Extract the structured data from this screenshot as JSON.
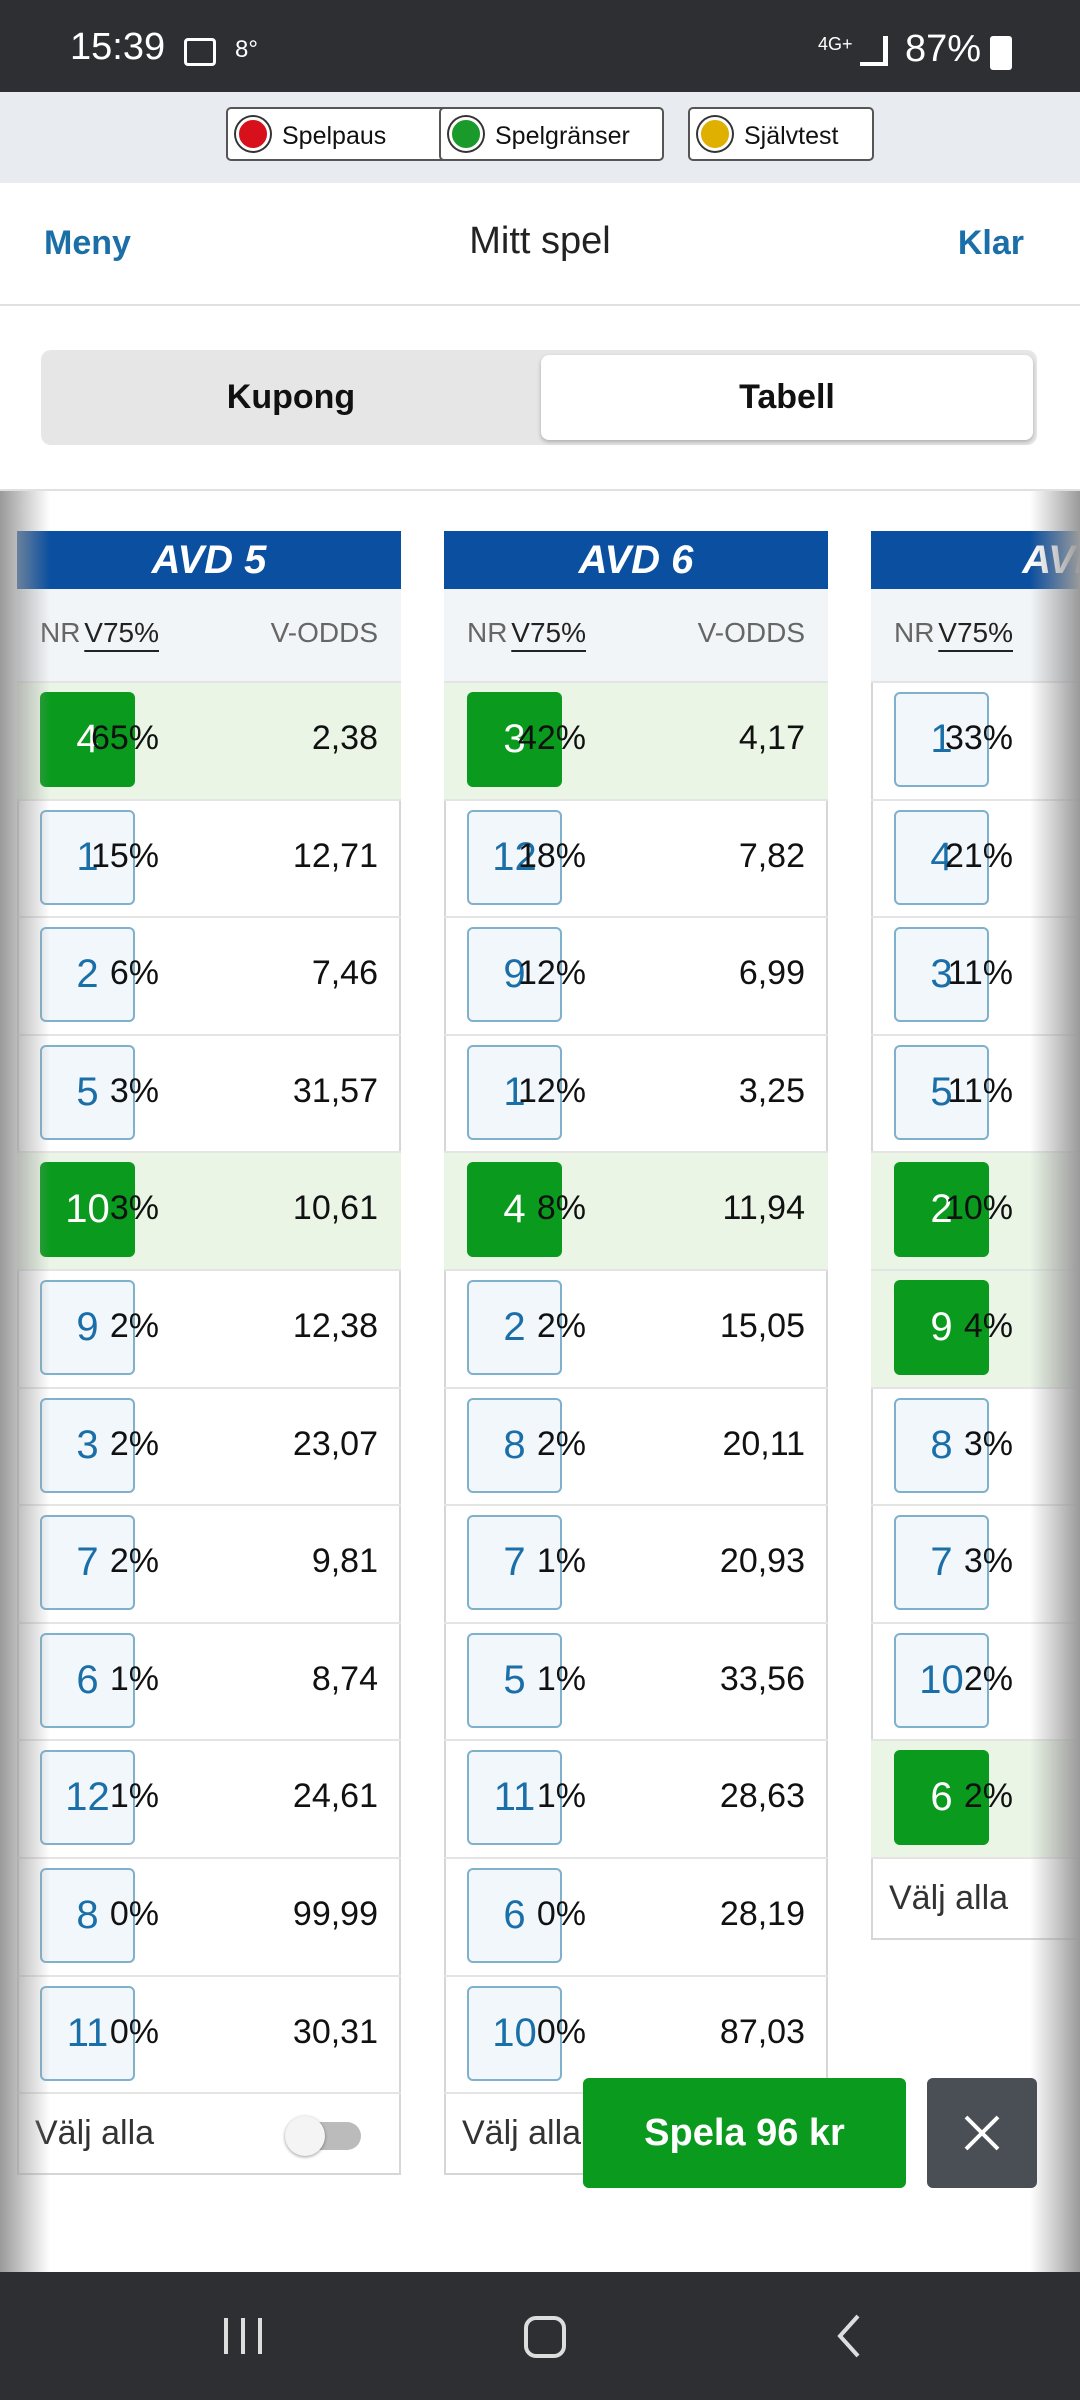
{
  "status_bar": {
    "time": "15:39",
    "temperature": "8°",
    "network": "4G+",
    "battery": "87%"
  },
  "toolbar": {
    "buttons": [
      "Spelpaus",
      "Spelgränser",
      "Självtest"
    ]
  },
  "header": {
    "left": "Meny",
    "title": "Mitt spel",
    "right": "Klar"
  },
  "tabs": {
    "items": [
      "Kupong",
      "Tabell"
    ],
    "active": 1
  },
  "races": [
    {
      "title": "AVD 5",
      "columns": [
        "NR",
        "V75%",
        "V-ODDS"
      ],
      "rows": [
        {
          "nr": 4,
          "pct": "65%",
          "odds": "2,38",
          "selected": true
        },
        {
          "nr": 1,
          "pct": "15%",
          "odds": "12,71",
          "selected": false
        },
        {
          "nr": 2,
          "pct": "6%",
          "odds": "7,46",
          "selected": false
        },
        {
          "nr": 5,
          "pct": "3%",
          "odds": "31,57",
          "selected": false
        },
        {
          "nr": 10,
          "pct": "3%",
          "odds": "10,61",
          "selected": true
        },
        {
          "nr": 9,
          "pct": "2%",
          "odds": "12,38",
          "selected": false
        },
        {
          "nr": 3,
          "pct": "2%",
          "odds": "23,07",
          "selected": false
        },
        {
          "nr": 7,
          "pct": "2%",
          "odds": "9,81",
          "selected": false
        },
        {
          "nr": 6,
          "pct": "1%",
          "odds": "8,74",
          "selected": false
        },
        {
          "nr": 12,
          "pct": "1%",
          "odds": "24,61",
          "selected": false
        },
        {
          "nr": 8,
          "pct": "0%",
          "odds": "99,99",
          "selected": false
        },
        {
          "nr": 11,
          "pct": "0%",
          "odds": "30,31",
          "selected": false
        }
      ],
      "select_all": "Välj alla"
    },
    {
      "title": "AVD 6",
      "columns": [
        "NR",
        "V75%",
        "V-ODDS"
      ],
      "rows": [
        {
          "nr": 3,
          "pct": "42%",
          "odds": "4,17",
          "selected": true
        },
        {
          "nr": 12,
          "pct": "18%",
          "odds": "7,82",
          "selected": false
        },
        {
          "nr": 9,
          "pct": "12%",
          "odds": "6,99",
          "selected": false
        },
        {
          "nr": 1,
          "pct": "12%",
          "odds": "3,25",
          "selected": false
        },
        {
          "nr": 4,
          "pct": "8%",
          "odds": "11,94",
          "selected": true
        },
        {
          "nr": 2,
          "pct": "2%",
          "odds": "15,05",
          "selected": false
        },
        {
          "nr": 8,
          "pct": "2%",
          "odds": "20,11",
          "selected": false
        },
        {
          "nr": 7,
          "pct": "1%",
          "odds": "20,93",
          "selected": false
        },
        {
          "nr": 5,
          "pct": "1%",
          "odds": "33,56",
          "selected": false
        },
        {
          "nr": 11,
          "pct": "1%",
          "odds": "28,63",
          "selected": false
        },
        {
          "nr": 6,
          "pct": "0%",
          "odds": "28,19",
          "selected": false
        },
        {
          "nr": 10,
          "pct": "0%",
          "odds": "87,03",
          "selected": false
        }
      ],
      "select_all": "Välj alla"
    },
    {
      "title": "AVD",
      "columns": [
        "NR",
        "V75%"
      ],
      "rows": [
        {
          "nr": 1,
          "pct": "33%",
          "selected": false
        },
        {
          "nr": 4,
          "pct": "21%",
          "selected": false
        },
        {
          "nr": 3,
          "pct": "11%",
          "selected": false
        },
        {
          "nr": 5,
          "pct": "11%",
          "selected": false
        },
        {
          "nr": 2,
          "pct": "10%",
          "selected": true
        },
        {
          "nr": 9,
          "pct": "4%",
          "selected": true
        },
        {
          "nr": 8,
          "pct": "3%",
          "selected": false
        },
        {
          "nr": 7,
          "pct": "3%",
          "selected": false
        },
        {
          "nr": 10,
          "pct": "2%",
          "selected": false
        },
        {
          "nr": 6,
          "pct": "2%",
          "selected": true
        }
      ],
      "select_all": "Välj alla"
    }
  ],
  "play_button": "Spela 96 kr"
}
